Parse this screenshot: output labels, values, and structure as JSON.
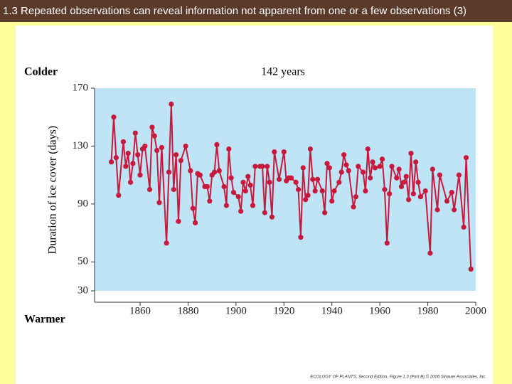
{
  "slide_title": "1.3 Repeated observations can reveal information not apparent from one or a few observations (3)",
  "credit": "ECOLOGY OF PLANTS, Second Edition, Figure 1.3 (Part B) © 2006 Sinauer Associates, Inc.",
  "chart_data": {
    "type": "line",
    "title": "142 years",
    "y_label": "Duration of ice cover (days)",
    "top_label": "Colder",
    "bottom_label": "Warmer",
    "color": "#c8193c",
    "background": "#bfe4f6",
    "xlim": [
      1841,
      2000
    ],
    "xticks": [
      1860,
      1880,
      1900,
      1920,
      1940,
      1960,
      1980,
      2000
    ],
    "ylim": [
      30,
      170
    ],
    "yticks": [
      30,
      50,
      90,
      130,
      170
    ],
    "x": [
      1848,
      1849,
      1850,
      1851,
      1853,
      1854,
      1855,
      1856,
      1857,
      1858,
      1859,
      1860,
      1861,
      1862,
      1864,
      1865,
      1866,
      1867,
      1868,
      1869,
      1871,
      1872,
      1873,
      1874,
      1875,
      1876,
      1877,
      1879,
      1881,
      1882,
      1883,
      1884,
      1885,
      1887,
      1888,
      1889,
      1890,
      1891,
      1892,
      1893,
      1895,
      1896,
      1897,
      1898,
      1899,
      1901,
      1902,
      1903,
      1904,
      1905,
      1906,
      1907,
      1908,
      1910,
      1911,
      1912,
      1913,
      1914,
      1915,
      1916,
      1918,
      1920,
      1921,
      1922,
      1923,
      1925,
      1926,
      1927,
      1928,
      1929,
      1930,
      1931,
      1932,
      1933,
      1934,
      1936,
      1937,
      1938,
      1939,
      1940,
      1941,
      1943,
      1944,
      1945,
      1946,
      1947,
      1949,
      1950,
      1951,
      1953,
      1954,
      1955,
      1956,
      1957,
      1958,
      1960,
      1961,
      1962,
      1963,
      1964,
      1965,
      1967,
      1968,
      1969,
      1970,
      1971,
      1972,
      1973,
      1974,
      1975,
      1976,
      1977,
      1979,
      1981,
      1982,
      1984,
      1985,
      1988,
      1990,
      1991,
      1993,
      1995,
      1996,
      1998
    ],
    "values": [
      119,
      150,
      122,
      96,
      133,
      116,
      125,
      105,
      118,
      139,
      124,
      110,
      128,
      130,
      100,
      143,
      137,
      127,
      91,
      129,
      63,
      112,
      159,
      100,
      124,
      78,
      120,
      130,
      113,
      87,
      77,
      111,
      110,
      102,
      102,
      92,
      110,
      112,
      131,
      113,
      102,
      89,
      128,
      108,
      98,
      95,
      85,
      105,
      99,
      109,
      103,
      89,
      116,
      116,
      116,
      84,
      116,
      105,
      81,
      126,
      107,
      126,
      106,
      108,
      108,
      105,
      100,
      67,
      115,
      93,
      96,
      128,
      107,
      99,
      107,
      99,
      84,
      118,
      115,
      92,
      99,
      105,
      112,
      124,
      117,
      113,
      88,
      95,
      116,
      112,
      99,
      128,
      108,
      119,
      115,
      116,
      121,
      100,
      63,
      97,
      116,
      108,
      114,
      102,
      105,
      109,
      93,
      125,
      97,
      119,
      105,
      95,
      99,
      56,
      114,
      86,
      110,
      92,
      98,
      86,
      110,
      74,
      122,
      45
    ]
  }
}
